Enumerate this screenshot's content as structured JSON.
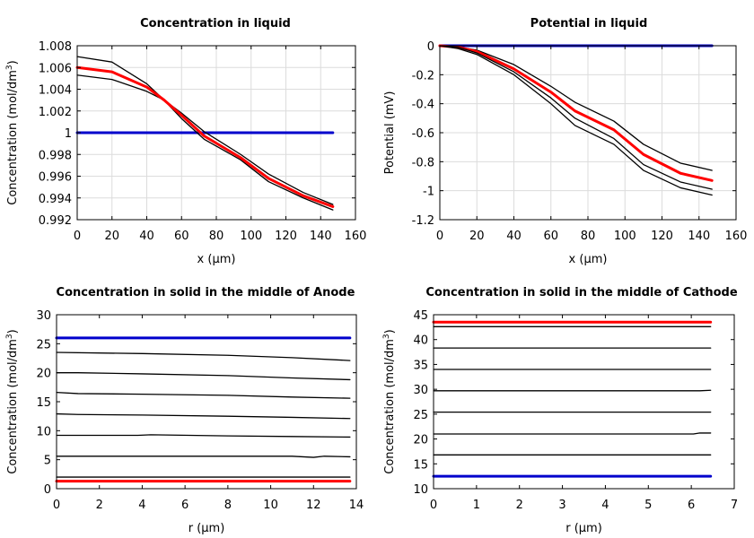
{
  "chart_data": [
    {
      "type": "line",
      "title": "Concentration in liquid",
      "xlabel": "x (µm)",
      "ylabel": "Concentration (mol/dm³)",
      "ylabel_main": "Concentration (mol/dm",
      "ylabel_sup": "3",
      "ylabel_end": ")",
      "xlim": [
        0,
        160
      ],
      "ylim": [
        0.992,
        1.008
      ],
      "xticks": [
        0,
        20,
        40,
        60,
        80,
        100,
        120,
        140,
        160
      ],
      "xtick_labels": [
        "0",
        "20",
        "40",
        "60",
        "80",
        "100",
        "120",
        "140",
        "160"
      ],
      "yticks": [
        0.992,
        0.994,
        0.996,
        0.998,
        1,
        1.002,
        1.004,
        1.006,
        1.008
      ],
      "ytick_labels": [
        "0.992",
        "0.994",
        "0.996",
        "0.998",
        "1",
        "1.002",
        "1.004",
        "1.006",
        "1.008"
      ],
      "grid": true,
      "colors": {
        "initial": "#0000cc",
        "final": "#ff0000",
        "intermediate": "#000000"
      },
      "series": [
        {
          "role": "initial",
          "x": [
            0,
            147
          ],
          "y": [
            1.0,
            1.0
          ]
        },
        {
          "role": "intermediate",
          "x": [
            0,
            20,
            40,
            50,
            60,
            73,
            94,
            110,
            130,
            147
          ],
          "y": [
            1.007,
            1.0065,
            1.0045,
            1.003,
            1.0013,
            0.9994,
            0.9975,
            0.9955,
            0.994,
            0.9929
          ]
        },
        {
          "role": "intermediate",
          "x": [
            0,
            20,
            40,
            50,
            60,
            73,
            94,
            110,
            130,
            147
          ],
          "y": [
            1.0053,
            1.0049,
            1.0038,
            1.003,
            1.0018,
            1.0001,
            0.998,
            0.9962,
            0.9945,
            0.9934
          ]
        },
        {
          "role": "final",
          "x": [
            0,
            20,
            40,
            50,
            60,
            73,
            94,
            110,
            130,
            147
          ],
          "y": [
            1.006,
            1.0056,
            1.0042,
            1.003,
            1.0016,
            0.9997,
            0.9977,
            0.9958,
            0.9942,
            0.9932
          ]
        }
      ]
    },
    {
      "type": "line",
      "title": "Potential in liquid",
      "xlabel": "x (µm)",
      "ylabel": "Potential (mV)",
      "xlim": [
        0,
        160
      ],
      "ylim": [
        -1.2,
        0
      ],
      "xticks": [
        0,
        20,
        40,
        60,
        80,
        100,
        120,
        140,
        160
      ],
      "xtick_labels": [
        "0",
        "20",
        "40",
        "60",
        "80",
        "100",
        "120",
        "140",
        "160"
      ],
      "yticks": [
        -1.2,
        -1,
        -0.8,
        -0.6,
        -0.4,
        -0.2,
        0
      ],
      "ytick_labels": [
        "-1.2",
        "-1",
        "-0.8",
        "-0.6",
        "-0.4",
        "-0.2",
        "0"
      ],
      "grid": true,
      "colors": {
        "initial": "#0000cc",
        "final": "#ff0000",
        "intermediate": "#000000"
      },
      "series": [
        {
          "role": "initial",
          "x": [
            0,
            147
          ],
          "y": [
            0,
            0
          ]
        },
        {
          "role": "intermediate",
          "x": [
            0,
            10,
            20,
            40,
            60,
            73,
            94,
            110,
            130,
            147
          ],
          "y": [
            0,
            -0.01,
            -0.03,
            -0.13,
            -0.28,
            -0.39,
            -0.52,
            -0.68,
            -0.81,
            -0.86
          ]
        },
        {
          "role": "final",
          "x": [
            0,
            10,
            20,
            40,
            60,
            73,
            94,
            110,
            130,
            147
          ],
          "y": [
            0,
            -0.01,
            -0.04,
            -0.16,
            -0.32,
            -0.45,
            -0.58,
            -0.75,
            -0.88,
            -0.93
          ]
        },
        {
          "role": "intermediate",
          "x": [
            0,
            10,
            20,
            40,
            60,
            73,
            94,
            110,
            130,
            147
          ],
          "y": [
            0,
            -0.01,
            -0.05,
            -0.18,
            -0.36,
            -0.5,
            -0.64,
            -0.82,
            -0.94,
            -0.99
          ]
        },
        {
          "role": "intermediate",
          "x": [
            0,
            10,
            20,
            40,
            60,
            73,
            94,
            110,
            130,
            147
          ],
          "y": [
            0,
            -0.02,
            -0.06,
            -0.2,
            -0.4,
            -0.55,
            -0.68,
            -0.86,
            -0.98,
            -1.03
          ]
        }
      ]
    },
    {
      "type": "line",
      "title": "Concentration in solid in the middle of Anode",
      "xlabel": "r (µm)",
      "ylabel": "Concentration (mol/dm³)",
      "ylabel_main": "Concentration (mol/dm",
      "ylabel_sup": "3",
      "ylabel_end": ")",
      "xlim": [
        0,
        14
      ],
      "ylim": [
        0,
        30
      ],
      "xticks": [
        0,
        2,
        4,
        6,
        8,
        10,
        12,
        14
      ],
      "xtick_labels": [
        "0",
        "2",
        "4",
        "6",
        "8",
        "10",
        "12",
        "14"
      ],
      "yticks": [
        0,
        5,
        10,
        15,
        20,
        25,
        30
      ],
      "ytick_labels": [
        "0",
        "5",
        "10",
        "15",
        "20",
        "25",
        "30"
      ],
      "grid": false,
      "colors": {
        "initial": "#0000cc",
        "final": "#ff0000",
        "intermediate": "#000000"
      },
      "series": [
        {
          "role": "initial",
          "x": [
            0,
            13.7
          ],
          "y": [
            26.0,
            26.0
          ]
        },
        {
          "role": "intermediate",
          "x": [
            0,
            4,
            8,
            11,
            13.7
          ],
          "y": [
            23.5,
            23.3,
            23.0,
            22.6,
            22.1
          ]
        },
        {
          "role": "intermediate",
          "x": [
            0,
            1,
            4,
            8,
            11,
            13.7
          ],
          "y": [
            20.0,
            20.0,
            19.8,
            19.5,
            19.1,
            18.8
          ]
        },
        {
          "role": "intermediate",
          "x": [
            0,
            1,
            4,
            8,
            11,
            13.7
          ],
          "y": [
            16.6,
            16.4,
            16.3,
            16.1,
            15.8,
            15.6
          ]
        },
        {
          "role": "intermediate",
          "x": [
            0,
            1,
            4,
            8,
            11,
            13.7
          ],
          "y": [
            12.9,
            12.8,
            12.7,
            12.5,
            12.3,
            12.1
          ]
        },
        {
          "role": "intermediate",
          "x": [
            0,
            3.8,
            4.4,
            8,
            11,
            13.7
          ],
          "y": [
            9.2,
            9.2,
            9.3,
            9.1,
            9.0,
            8.9
          ]
        },
        {
          "role": "intermediate",
          "x": [
            0,
            6,
            11,
            12,
            12.5,
            13.7
          ],
          "y": [
            5.6,
            5.6,
            5.6,
            5.4,
            5.6,
            5.5
          ]
        },
        {
          "role": "intermediate",
          "x": [
            0,
            13.7
          ],
          "y": [
            2.0,
            2.0
          ]
        },
        {
          "role": "final",
          "x": [
            0,
            13.7
          ],
          "y": [
            1.3,
            1.3
          ]
        }
      ]
    },
    {
      "type": "line",
      "title": "Concentration in solid in the middle of Cathode",
      "xlabel": "r (µm)",
      "ylabel": "Concentration (mol/dm³)",
      "ylabel_main": "Concentration (mol/dm",
      "ylabel_sup": "3",
      "ylabel_end": ")",
      "xlim": [
        0,
        7
      ],
      "ylim": [
        10,
        45
      ],
      "xticks": [
        0,
        1,
        2,
        3,
        4,
        5,
        6,
        7
      ],
      "xtick_labels": [
        "0",
        "1",
        "2",
        "3",
        "4",
        "5",
        "6",
        "7"
      ],
      "yticks": [
        10,
        15,
        20,
        25,
        30,
        35,
        40,
        45
      ],
      "ytick_labels": [
        "10",
        "15",
        "20",
        "25",
        "30",
        "35",
        "40",
        "45"
      ],
      "grid": false,
      "colors": {
        "initial": "#0000cc",
        "final": "#ff0000",
        "intermediate": "#000000"
      },
      "series": [
        {
          "role": "final",
          "x": [
            0,
            6.45
          ],
          "y": [
            43.5,
            43.5
          ]
        },
        {
          "role": "intermediate",
          "x": [
            0,
            6.45
          ],
          "y": [
            42.6,
            42.6
          ]
        },
        {
          "role": "intermediate",
          "x": [
            0,
            6.45
          ],
          "y": [
            38.3,
            38.3
          ]
        },
        {
          "role": "intermediate",
          "x": [
            0,
            6.45
          ],
          "y": [
            34.0,
            34.0
          ]
        },
        {
          "role": "intermediate",
          "x": [
            0,
            6.2,
            6.45
          ],
          "y": [
            29.7,
            29.7,
            29.8
          ]
        },
        {
          "role": "intermediate",
          "x": [
            0,
            6.45
          ],
          "y": [
            25.4,
            25.4
          ]
        },
        {
          "role": "intermediate",
          "x": [
            0,
            6.05,
            6.2,
            6.45
          ],
          "y": [
            21.0,
            21.0,
            21.2,
            21.2
          ]
        },
        {
          "role": "intermediate",
          "x": [
            0,
            6.45
          ],
          "y": [
            16.8,
            16.8
          ]
        },
        {
          "role": "initial",
          "x": [
            0,
            6.45
          ],
          "y": [
            12.5,
            12.5
          ]
        }
      ]
    }
  ]
}
